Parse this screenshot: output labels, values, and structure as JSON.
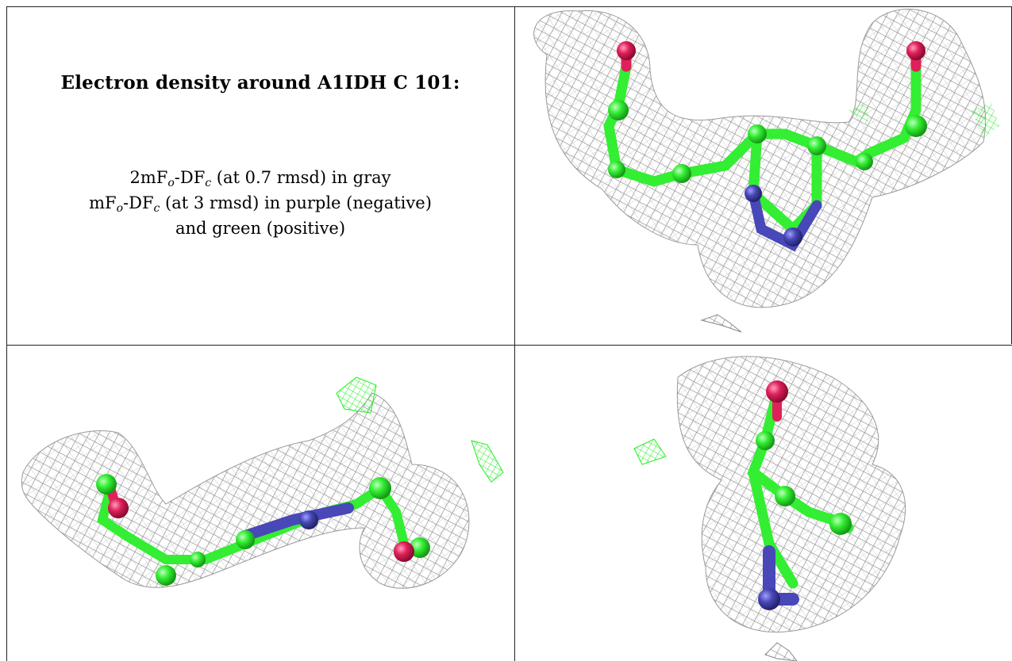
{
  "title": "Electron density around A1IDH C 101:",
  "legend": {
    "line1_a": "2mF",
    "line1_sub1": "o",
    "line1_b": "-DF",
    "line1_sub2": "c",
    "line1_c": " (at 0.7 rmsd) in gray",
    "line2_a": "mF",
    "line2_sub1": "o",
    "line2_b": "-DF",
    "line2_sub2": "c",
    "line2_c": " (at 3 rmsd) in purple (negative)",
    "line3": "and green (positive)"
  },
  "colors": {
    "mesh_gray": "#8a8a8a",
    "mesh_green": "#22ee22",
    "carbon_green": "#33ee33",
    "nitrogen_blue": "#4848b8",
    "oxygen_red": "#e0205a",
    "border": "#222222"
  },
  "panels": [
    "view-1",
    "view-2",
    "view-3"
  ]
}
